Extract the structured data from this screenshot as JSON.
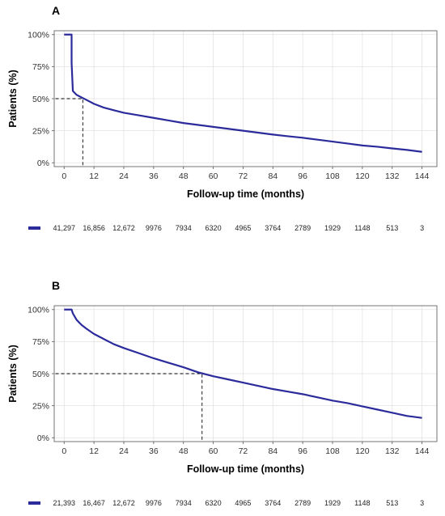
{
  "chart_data": [
    {
      "panel": "A",
      "type": "line",
      "xlabel": "Follow-up time (months)",
      "ylabel": "Patients (%)",
      "xlim": [
        -4,
        150
      ],
      "ylim": [
        -3,
        103
      ],
      "xticks": [
        0,
        12,
        24,
        36,
        48,
        60,
        72,
        84,
        96,
        108,
        120,
        132,
        144
      ],
      "yticks": [
        0,
        25,
        50,
        75,
        100
      ],
      "ytick_labels": [
        "0%",
        "25%",
        "50%",
        "75%",
        "100%"
      ],
      "color": "#2b2b9c",
      "series": [
        {
          "x": [
            0,
            3,
            3,
            3.5,
            5,
            7,
            9,
            12,
            16,
            20,
            24,
            30,
            36,
            42,
            48,
            54,
            60,
            66,
            72,
            78,
            84,
            90,
            96,
            102,
            108,
            114,
            120,
            126,
            132,
            138,
            144
          ],
          "y": [
            100,
            100,
            78,
            56,
            53,
            51,
            49,
            46,
            43,
            41,
            39,
            37,
            35,
            33,
            31,
            29.5,
            28,
            26.5,
            25,
            23.5,
            22,
            20.7,
            19.5,
            18,
            16.5,
            15,
            13.5,
            12.5,
            11.2,
            10,
            8.5
          ]
        }
      ],
      "median_survival": {
        "x": 7.5,
        "y": 50
      },
      "risk_table": [
        "41,297",
        "16,856",
        "12,672",
        "9976",
        "7934",
        "6320",
        "4965",
        "3764",
        "2789",
        "1929",
        "1148",
        "513",
        "3"
      ]
    },
    {
      "panel": "B",
      "type": "line",
      "xlabel": "Follow-up time (months)",
      "ylabel": "Patients (%)",
      "xlim": [
        -4,
        150
      ],
      "ylim": [
        -3,
        103
      ],
      "xticks": [
        0,
        12,
        24,
        36,
        48,
        60,
        72,
        84,
        96,
        108,
        120,
        132,
        144
      ],
      "yticks": [
        0,
        25,
        50,
        75,
        100
      ],
      "ytick_labels": [
        "0%",
        "25%",
        "50%",
        "75%",
        "100%"
      ],
      "color": "#2b2b9c",
      "series": [
        {
          "x": [
            0,
            3,
            3.5,
            5,
            7,
            9,
            12,
            16,
            20,
            24,
            30,
            36,
            42,
            48,
            54,
            56,
            60,
            66,
            72,
            78,
            84,
            90,
            96,
            102,
            108,
            114,
            120,
            126,
            132,
            138,
            144
          ],
          "y": [
            100,
            100,
            97,
            92,
            88,
            85,
            81,
            77,
            73,
            70,
            66,
            62,
            58.5,
            55,
            51,
            50,
            48,
            45.5,
            43,
            40.5,
            38,
            36,
            34,
            31.5,
            29,
            27,
            24.5,
            22,
            19.5,
            17,
            15.5
          ]
        }
      ],
      "median_survival": {
        "x": 55.5,
        "y": 50
      },
      "risk_table": [
        "21,393",
        "16,467",
        "12,672",
        "9976",
        "7934",
        "6320",
        "4965",
        "3764",
        "2789",
        "1929",
        "1148",
        "513",
        "3"
      ]
    }
  ]
}
